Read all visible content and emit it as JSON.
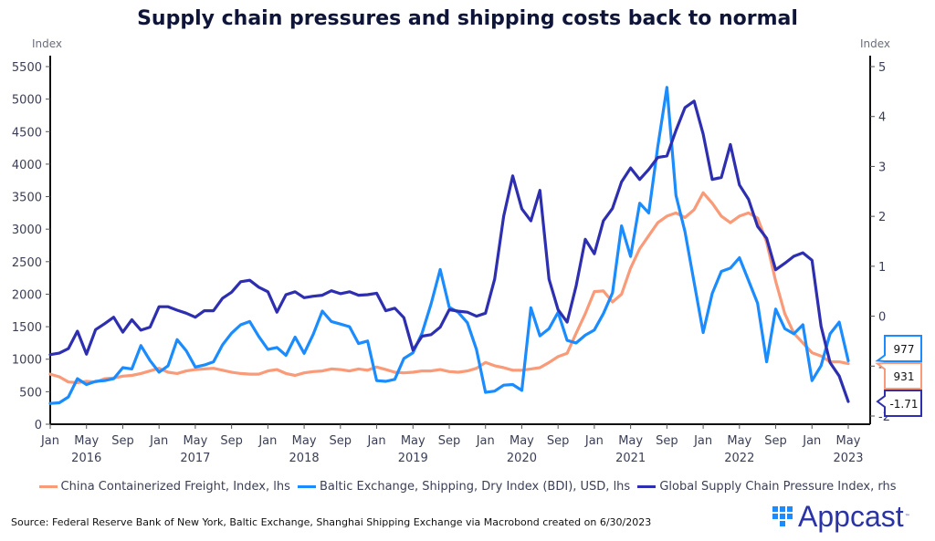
{
  "title": "Supply chain pressures and shipping costs back to normal",
  "source": "Source: Federal Reserve Bank of New York, Baltic Exchange, Shanghai Shipping Exchange via Macrobond created on 6/30/2023",
  "logo": {
    "name": "Appcast",
    "tm": "™"
  },
  "chart_data": {
    "type": "line",
    "title": "Supply chain pressures and shipping costs back to normal",
    "xlabel": "",
    "ylabel_left": "Index",
    "ylabel_right": "Index",
    "ylim_left": [
      0,
      5500
    ],
    "ylim_right": [
      -2,
      5
    ],
    "yticks_left": [
      0,
      500,
      1000,
      1500,
      2000,
      2500,
      3000,
      3500,
      4000,
      4500,
      5000,
      5500
    ],
    "yticks_right": [
      -2,
      -1,
      0,
      1,
      2,
      3,
      4,
      5
    ],
    "yticks_right_labels": [
      "-2",
      "-1",
      "0",
      "1",
      "2",
      "3",
      "4",
      "5"
    ],
    "x_start": "2016-01",
    "x_frequency": "monthly",
    "x_month_ticks": [
      "Jan",
      "May",
      "Sep",
      "Jan",
      "May",
      "Sep",
      "Jan",
      "May",
      "Sep",
      "Jan",
      "May",
      "Sep",
      "Jan",
      "May",
      "Sep",
      "Jan",
      "May",
      "Sep",
      "Jan",
      "May",
      "Sep",
      "Jan",
      "May"
    ],
    "x_year_labels": [
      {
        "label": "2016",
        "month_index": 4
      },
      {
        "label": "2017",
        "month_index": 16
      },
      {
        "label": "2018",
        "month_index": 28
      },
      {
        "label": "2019",
        "month_index": 40
      },
      {
        "label": "2020",
        "month_index": 52
      },
      {
        "label": "2021",
        "month_index": 64
      },
      {
        "label": "2022",
        "month_index": 76
      },
      {
        "label": "2023",
        "month_index": 88
      }
    ],
    "grid": false,
    "legend_position": "bottom",
    "series": [
      {
        "name": "China Containerized Freight, Index, lhs",
        "axis": "left",
        "color": "#f99a78",
        "last_value_label": "931",
        "values": [
          770,
          730,
          650,
          640,
          660,
          650,
          700,
          710,
          740,
          750,
          780,
          820,
          860,
          800,
          780,
          820,
          840,
          850,
          860,
          830,
          800,
          780,
          770,
          770,
          820,
          840,
          780,
          750,
          790,
          810,
          820,
          850,
          840,
          820,
          850,
          830,
          880,
          840,
          800,
          790,
          800,
          820,
          820,
          840,
          810,
          800,
          820,
          860,
          950,
          900,
          870,
          830,
          830,
          850,
          870,
          950,
          1040,
          1090,
          1400,
          1700,
          2040,
          2050,
          1880,
          2000,
          2400,
          2700,
          2900,
          3100,
          3200,
          3250,
          3180,
          3300,
          3560,
          3400,
          3200,
          3100,
          3200,
          3250,
          3170,
          2800,
          2200,
          1700,
          1400,
          1250,
          1100,
          1050,
          960,
          960,
          931
        ]
      },
      {
        "name": "Baltic Exchange, Shipping, Dry Index (BDI), USD, lhs",
        "axis": "left",
        "color": "#1a8cff",
        "last_value_label": "977",
        "values": [
          320,
          330,
          420,
          700,
          610,
          660,
          670,
          700,
          870,
          850,
          1210,
          980,
          800,
          900,
          1300,
          1130,
          880,
          910,
          960,
          1220,
          1400,
          1530,
          1580,
          1350,
          1150,
          1180,
          1060,
          1340,
          1090,
          1380,
          1740,
          1580,
          1540,
          1500,
          1240,
          1280,
          670,
          660,
          690,
          1010,
          1100,
          1400,
          1850,
          2380,
          1800,
          1720,
          1560,
          1150,
          490,
          510,
          600,
          610,
          520,
          1790,
          1360,
          1470,
          1720,
          1290,
          1250,
          1370,
          1450,
          1700,
          2020,
          3050,
          2580,
          3400,
          3250,
          4270,
          5180,
          3520,
          2960,
          2180,
          1410,
          2010,
          2350,
          2400,
          2560,
          2210,
          1860,
          960,
          1770,
          1470,
          1390,
          1530,
          670,
          900,
          1390,
          1570,
          977
        ]
      },
      {
        "name": "Global Supply Chain Pressure Index, rhs",
        "axis": "right",
        "color": "#2e2fb0",
        "last_value_label": "-1.71",
        "values": [
          -0.77,
          -0.74,
          -0.65,
          -0.3,
          -0.76,
          -0.27,
          -0.15,
          -0.02,
          -0.32,
          -0.07,
          -0.28,
          -0.22,
          0.19,
          0.19,
          0.12,
          0.06,
          -0.02,
          0.11,
          0.11,
          0.36,
          0.48,
          0.69,
          0.72,
          0.58,
          0.49,
          0.08,
          0.43,
          0.49,
          0.37,
          0.4,
          0.42,
          0.51,
          0.45,
          0.49,
          0.42,
          0.43,
          0.46,
          0.11,
          0.16,
          -0.03,
          -0.68,
          -0.4,
          -0.37,
          -0.22,
          0.13,
          0.1,
          0.08,
          0.0,
          0.06,
          0.74,
          2.0,
          2.81,
          2.15,
          1.91,
          2.52,
          0.74,
          0.13,
          -0.12,
          0.61,
          1.54,
          1.25,
          1.91,
          2.16,
          2.69,
          2.97,
          2.74,
          2.94,
          3.18,
          3.21,
          3.72,
          4.18,
          4.31,
          3.65,
          2.74,
          2.78,
          3.44,
          2.63,
          2.34,
          1.8,
          1.56,
          0.93,
          1.06,
          1.2,
          1.27,
          1.12,
          -0.2,
          -0.93,
          -1.2,
          -1.71
        ]
      }
    ]
  }
}
